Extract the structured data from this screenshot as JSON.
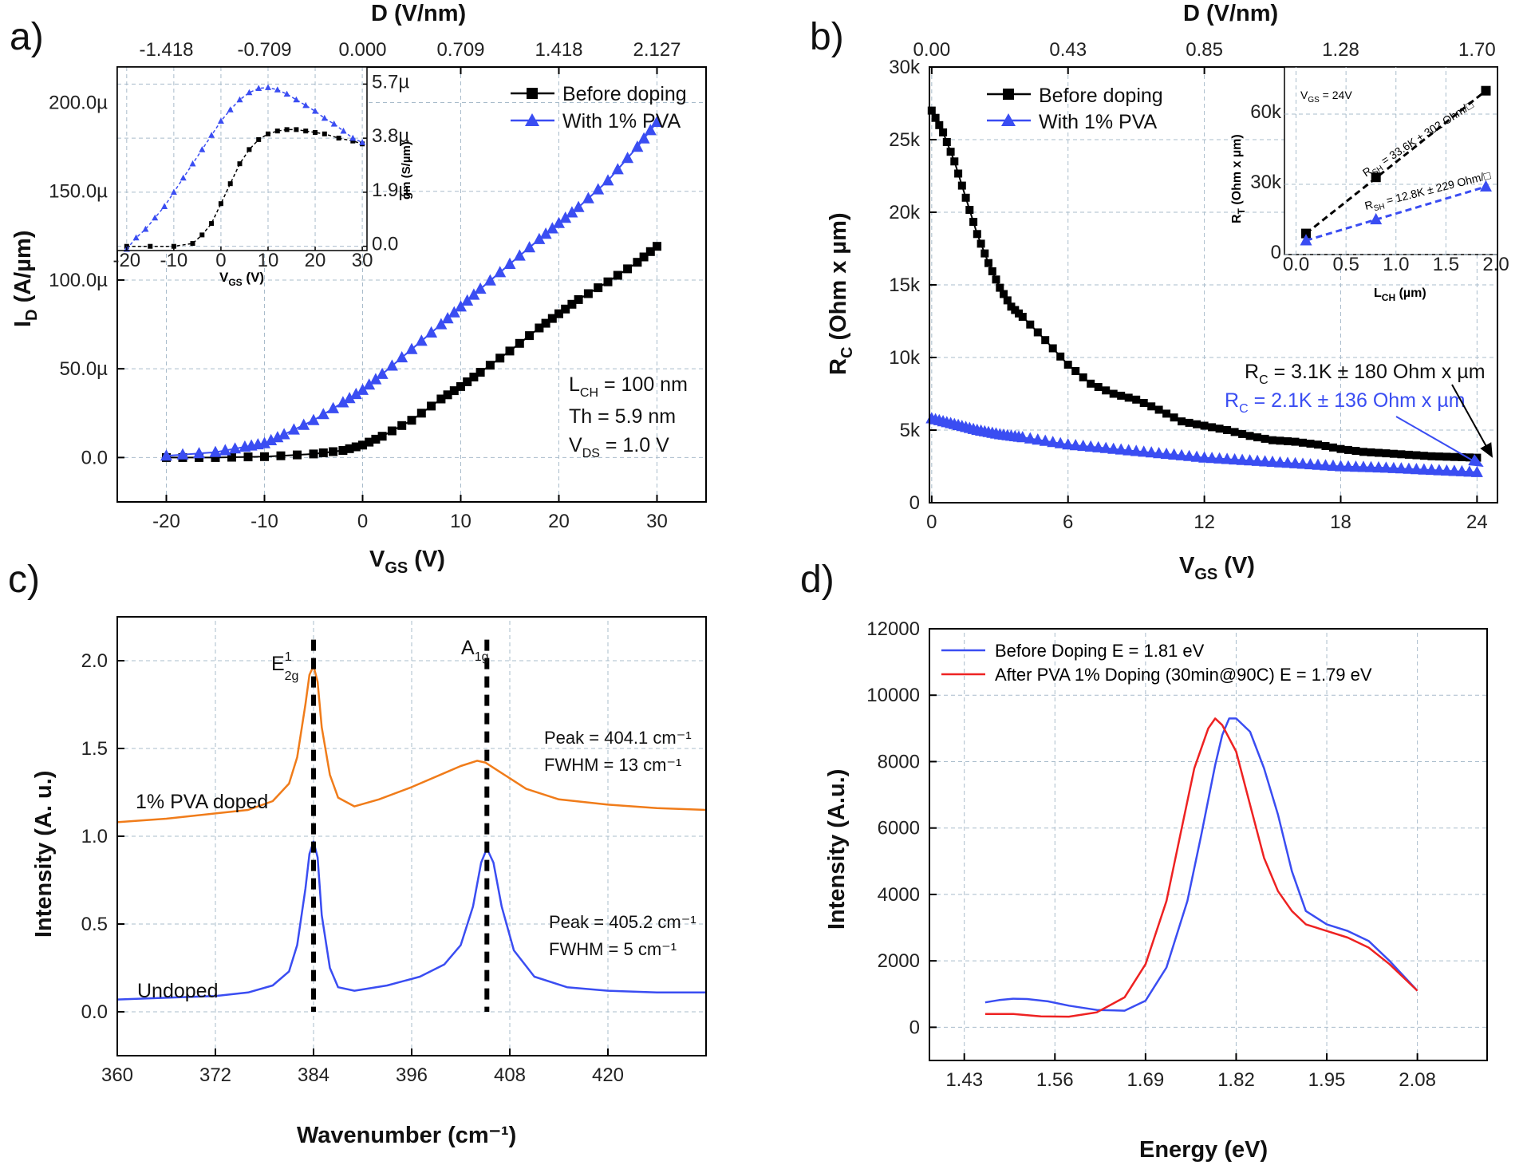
{
  "panels": {
    "a": "a)",
    "b": "b)",
    "c": "c)",
    "d": "d)"
  },
  "colors": {
    "black_series": "#000000",
    "blue_series": "#3a4df2",
    "orange_series": "#f07c1a",
    "red_series": "#ee2222",
    "grid": "#a9bccb"
  },
  "chart_data": [
    {
      "id": "a",
      "type": "scatter",
      "title": "",
      "xlabel": "V_GS (V)",
      "ylabel": "I_D (A/µm)",
      "top_axis_label": "D (V/nm)",
      "top_tick_labels": [
        "-1.418",
        "-0.709",
        "0.000",
        "0.709",
        "1.418",
        "2.127"
      ],
      "xlim": [
        -25,
        35
      ],
      "ylim": [
        -25,
        220
      ],
      "x_ticks": [
        -20,
        -10,
        0,
        10,
        20,
        30
      ],
      "x_tick_labels": [
        "-20",
        "-10",
        "0",
        "10",
        "20",
        "30"
      ],
      "y_ticks": [
        0,
        50,
        100,
        150,
        200
      ],
      "y_tick_labels": [
        "0.0",
        "50.0µ",
        "100.0µ",
        "150.0µ",
        "200.0µ"
      ],
      "grid": true,
      "legend_position": "top-right",
      "series": [
        {
          "name": "Before doping",
          "marker": "square",
          "color": "#000000",
          "x": [
            -20,
            -15,
            -10,
            -5,
            -2,
            0,
            2,
            5,
            8,
            10,
            12,
            15,
            18,
            20,
            22,
            25,
            28,
            30
          ],
          "y": [
            0,
            0,
            0.5,
            2,
            4,
            7,
            12,
            21,
            33,
            40,
            48,
            60,
            73,
            81,
            89,
            99,
            110,
            119
          ]
        },
        {
          "name": "With 1% PVA",
          "marker": "triangle",
          "color": "#3a4df2",
          "x": [
            -20,
            -15,
            -12,
            -10,
            -8,
            -5,
            -2,
            0,
            2,
            5,
            8,
            10,
            12,
            15,
            18,
            20,
            22,
            25,
            28,
            30
          ],
          "y": [
            1,
            3,
            6,
            8,
            13,
            21,
            31,
            38,
            47,
            61,
            75,
            85,
            95,
            109,
            123,
            132,
            141,
            156,
            175,
            189
          ]
        }
      ],
      "annotations": [
        "L_CH = 100 nm",
        "Th  = 5.9 nm",
        "V_DS = 1.0 V"
      ],
      "inset": {
        "type": "scatter",
        "xlabel": "V_GS (V)",
        "ylabel": "gm (S/µm)",
        "xlim": [
          -22,
          31
        ],
        "ylim": [
          -0.15,
          6.3
        ],
        "x_tick_labels": [
          "-20",
          "-10",
          "0",
          "10",
          "20",
          "30"
        ],
        "y_right_tick_labels": [
          "0.0",
          "1.9µ",
          "3.8µ",
          "5.7µ"
        ],
        "series": [
          {
            "name": "Before doping",
            "x": [
              -20,
              -15,
              -10,
              -6,
              -4,
              -2,
              0,
              2,
              4,
              6,
              8,
              10,
              12,
              14,
              16,
              18,
              20,
              22,
              25,
              28,
              30
            ],
            "y": [
              0,
              0,
              0,
              0.1,
              0.4,
              0.8,
              1.5,
              2.2,
              2.9,
              3.4,
              3.75,
              3.95,
              4.05,
              4.1,
              4.1,
              4.05,
              4.0,
              3.95,
              3.8,
              3.7,
              3.6
            ]
          },
          {
            "name": "With 1% PVA",
            "x": [
              -20,
              -18,
              -16,
              -14,
              -12,
              -10,
              -8,
              -6,
              -4,
              -2,
              0,
              2,
              4,
              6,
              8,
              10,
              12,
              14,
              16,
              18,
              20,
              22,
              24,
              26,
              28,
              30
            ],
            "y": [
              -0.1,
              0.3,
              0.6,
              1.0,
              1.4,
              1.9,
              2.4,
              2.9,
              3.4,
              3.9,
              4.4,
              4.8,
              5.15,
              5.4,
              5.55,
              5.58,
              5.5,
              5.35,
              5.15,
              4.95,
              4.75,
              4.5,
              4.3,
              4.05,
              3.8,
              3.65
            ]
          }
        ]
      }
    },
    {
      "id": "b",
      "type": "scatter",
      "title": "",
      "xlabel": "V_GS (V)",
      "ylabel": "R_C (Ohm x µm)",
      "top_axis_label": "D (V/nm)",
      "top_tick_labels": [
        "0.00",
        "0.43",
        "0.85",
        "1.28",
        "1.70"
      ],
      "xlim": [
        0,
        24
      ],
      "ylim": [
        0,
        30000
      ],
      "x_ticks": [
        0,
        6,
        12,
        18,
        24
      ],
      "x_tick_labels": [
        "0",
        "6",
        "12",
        "18",
        "24"
      ],
      "y_ticks": [
        0,
        5000,
        10000,
        15000,
        20000,
        25000,
        30000
      ],
      "y_tick_labels": [
        "0",
        "5k",
        "10k",
        "15k",
        "20k",
        "25k",
        "30k"
      ],
      "grid": true,
      "legend_position": "top-left",
      "series": [
        {
          "name": "Before doping",
          "marker": "square",
          "color": "#000000",
          "x": [
            0,
            0.5,
            1,
            1.5,
            2,
            2.5,
            3,
            3.5,
            4,
            5,
            6,
            7,
            8,
            9,
            10,
            11,
            12,
            13,
            14,
            15,
            16,
            17,
            18,
            19,
            20,
            21,
            22,
            23,
            24
          ],
          "y": [
            27000,
            25500,
            23500,
            21000,
            18500,
            16500,
            14800,
            13500,
            12800,
            11200,
            9500,
            8200,
            7500,
            7100,
            6400,
            5600,
            5300,
            5000,
            4600,
            4300,
            4200,
            4000,
            3700,
            3500,
            3400,
            3300,
            3200,
            3150,
            3100
          ]
        },
        {
          "name": "With 1% PVA",
          "marker": "triangle",
          "color": "#3a4df2",
          "x": [
            0,
            1,
            2,
            3,
            4,
            6,
            8,
            10,
            12,
            14,
            16,
            18,
            20,
            22,
            24
          ],
          "y": [
            5800,
            5400,
            5000,
            4700,
            4500,
            4000,
            3700,
            3400,
            3100,
            2900,
            2700,
            2500,
            2400,
            2250,
            2100
          ]
        }
      ],
      "annotations": [
        "R_C = 3.1K ± 180  Ohm x µm",
        "R_C = 2.1K ± 136 Ohm x µm"
      ],
      "inset": {
        "type": "scatter",
        "xlabel": "L_CH (µm)",
        "ylabel": "R_T (Ohm x µm)",
        "note": "V_GS = 24V",
        "xlim": [
          -0.1,
          2.0
        ],
        "ylim": [
          0,
          75000
        ],
        "x_tick_labels": [
          "0.0",
          "0.5",
          "1.0",
          "1.5",
          "2.0"
        ],
        "y_tick_labels": [
          "0",
          "30k",
          "60k"
        ],
        "series": [
          {
            "name": "Before doping",
            "x": [
              0.1,
              0.8,
              1.9
            ],
            "y": [
              9000,
              33000,
              70000
            ],
            "fit_label": "R_SH = 33.6K ± 302 Ohm/□"
          },
          {
            "name": "With 1% PVA",
            "x": [
              0.1,
              0.8,
              1.9
            ],
            "y": [
              6000,
              15000,
              29000
            ],
            "fit_label": "R_SH = 12.8K ± 229 Ohm/□"
          }
        ]
      }
    },
    {
      "id": "c",
      "type": "line",
      "title": "",
      "xlabel": "Wavenumber (cm⁻¹)",
      "ylabel": "Intensity (A. u.)",
      "xlim": [
        360,
        432
      ],
      "ylim": [
        -0.25,
        2.25
      ],
      "x_ticks": [
        360,
        372,
        384,
        396,
        408,
        420
      ],
      "x_tick_labels": [
        "360",
        "372",
        "384",
        "396",
        "408",
        "420"
      ],
      "y_ticks": [
        0,
        0.5,
        1.0,
        1.5,
        2.0
      ],
      "y_tick_labels": [
        "0.0",
        "0.5",
        "1.0",
        "1.5",
        "2.0"
      ],
      "grid": true,
      "peak_lines": [
        384,
        405.2
      ],
      "peak_labels": [
        "E¹₂g",
        "A₁g"
      ],
      "series": [
        {
          "name": "1% PVA doped",
          "color": "#f07c1a",
          "x": [
            360,
            366,
            372,
            376,
            379,
            381,
            382,
            383,
            383.5,
            384,
            384.5,
            385,
            386,
            387,
            389,
            392,
            396,
            400,
            402,
            404,
            405,
            407,
            410,
            414,
            420,
            426,
            432
          ],
          "y": [
            1.08,
            1.1,
            1.13,
            1.15,
            1.2,
            1.3,
            1.45,
            1.75,
            1.92,
            1.97,
            1.88,
            1.62,
            1.35,
            1.22,
            1.17,
            1.21,
            1.28,
            1.36,
            1.4,
            1.43,
            1.42,
            1.36,
            1.27,
            1.21,
            1.18,
            1.16,
            1.15
          ]
        },
        {
          "name": "Undoped",
          "color": "#3a4df2",
          "x": [
            360,
            366,
            372,
            376,
            379,
            381,
            382,
            383,
            383.5,
            384,
            384.5,
            385,
            386,
            387,
            389,
            393,
            397,
            400,
            402,
            403.5,
            404.5,
            405.2,
            406,
            407,
            408.5,
            411,
            415,
            420,
            426,
            432
          ],
          "y": [
            0.07,
            0.08,
            0.09,
            0.11,
            0.15,
            0.23,
            0.38,
            0.7,
            0.9,
            0.97,
            0.88,
            0.55,
            0.25,
            0.14,
            0.12,
            0.15,
            0.2,
            0.27,
            0.38,
            0.6,
            0.85,
            0.93,
            0.85,
            0.6,
            0.35,
            0.2,
            0.14,
            0.12,
            0.11,
            0.11
          ]
        }
      ],
      "annotations": [
        "Peak = 404.1 cm⁻¹",
        "FWHM = 13 cm⁻¹",
        "Peak = 405.2 cm⁻¹",
        "FWHM = 5 cm⁻¹",
        "1% PVA doped",
        "Undoped"
      ]
    },
    {
      "id": "d",
      "type": "line",
      "title": "",
      "xlabel": "Energy (eV)",
      "ylabel": "Intensity (A.u.)",
      "xlim": [
        1.38,
        2.18
      ],
      "ylim": [
        -1000,
        12000
      ],
      "x_ticks": [
        1.43,
        1.56,
        1.69,
        1.82,
        1.95,
        2.08
      ],
      "x_tick_labels": [
        "1.43",
        "1.56",
        "1.69",
        "1.82",
        "1.95",
        "2.08"
      ],
      "y_ticks": [
        0,
        2000,
        4000,
        6000,
        8000,
        10000,
        12000
      ],
      "y_tick_labels": [
        "0",
        "2000",
        "4000",
        "6000",
        "8000",
        "10000",
        "12000"
      ],
      "grid": true,
      "legend_position": "top-left",
      "series": [
        {
          "name": "Before Doping E = 1.81 eV",
          "color": "#3a4df2",
          "x": [
            1.46,
            1.48,
            1.5,
            1.52,
            1.55,
            1.58,
            1.62,
            1.66,
            1.69,
            1.72,
            1.75,
            1.77,
            1.79,
            1.8,
            1.81,
            1.82,
            1.84,
            1.86,
            1.88,
            1.9,
            1.92,
            1.95,
            1.98,
            2.01,
            2.04,
            2.08
          ],
          "y": [
            750,
            820,
            860,
            850,
            780,
            650,
            520,
            500,
            800,
            1800,
            3800,
            5800,
            7900,
            8800,
            9300,
            9300,
            8900,
            7800,
            6400,
            4700,
            3500,
            3100,
            2900,
            2600,
            2000,
            1100
          ]
        },
        {
          "name": "After PVA 1% Doping (30min@90C) E = 1.79 eV",
          "color": "#ee2222",
          "x": [
            1.46,
            1.5,
            1.54,
            1.58,
            1.62,
            1.66,
            1.69,
            1.72,
            1.74,
            1.76,
            1.78,
            1.79,
            1.8,
            1.82,
            1.84,
            1.86,
            1.88,
            1.9,
            1.92,
            1.95,
            1.98,
            2.01,
            2.04,
            2.08
          ],
          "y": [
            400,
            400,
            330,
            320,
            450,
            900,
            1900,
            3800,
            5800,
            7800,
            9000,
            9300,
            9100,
            8300,
            6700,
            5100,
            4100,
            3500,
            3100,
            2900,
            2700,
            2400,
            1900,
            1100
          ]
        }
      ]
    }
  ]
}
